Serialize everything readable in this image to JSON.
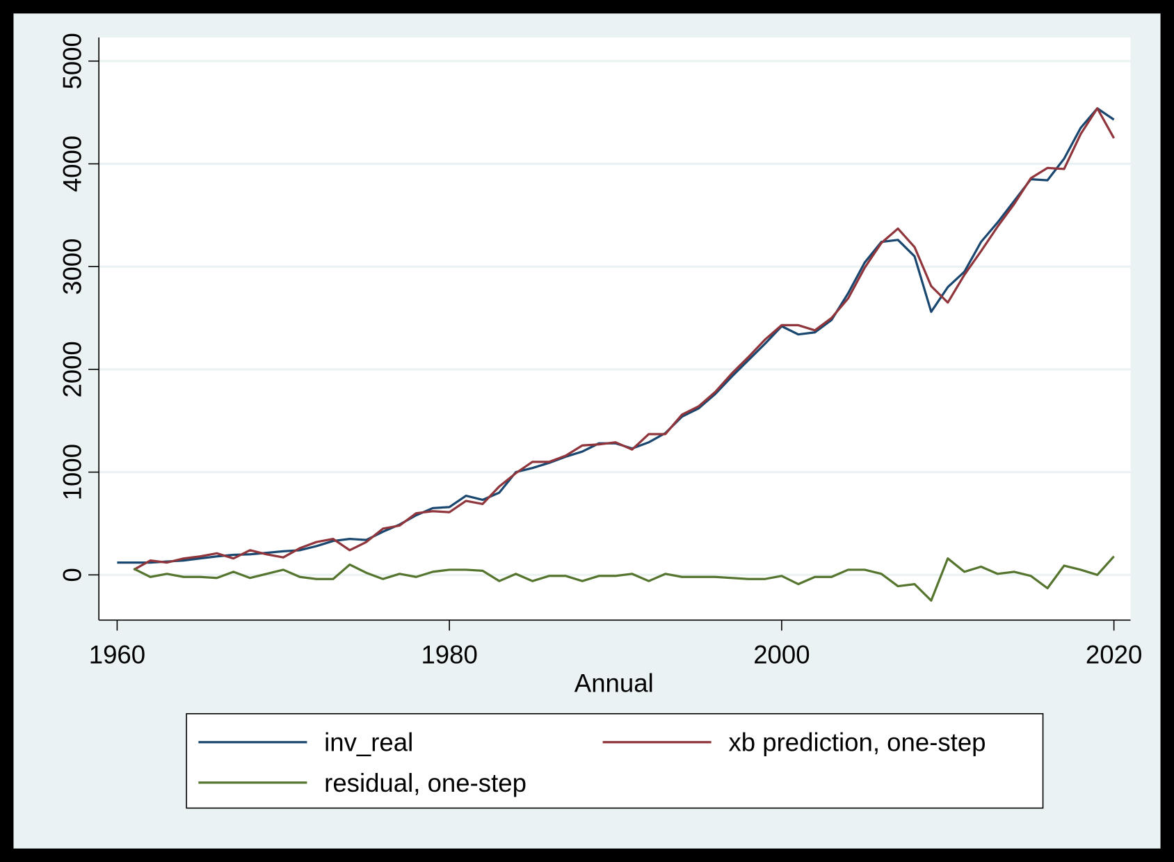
{
  "chart_data": {
    "type": "line",
    "x_label": "Annual",
    "x": [
      1960,
      1961,
      1962,
      1963,
      1964,
      1965,
      1966,
      1967,
      1968,
      1969,
      1970,
      1971,
      1972,
      1973,
      1974,
      1975,
      1976,
      1977,
      1978,
      1979,
      1980,
      1981,
      1982,
      1983,
      1984,
      1985,
      1986,
      1987,
      1988,
      1989,
      1990,
      1991,
      1992,
      1993,
      1994,
      1995,
      1996,
      1997,
      1998,
      1999,
      2000,
      2001,
      2002,
      2003,
      2004,
      2005,
      2006,
      2007,
      2008,
      2009,
      2010,
      2011,
      2012,
      2013,
      2014,
      2015,
      2016,
      2017,
      2018,
      2019,
      2020
    ],
    "series": [
      {
        "name": "inv_real",
        "color": "#1a476f",
        "values": [
          120,
          120,
          120,
          130,
          140,
          160,
          180,
          195,
          200,
          215,
          230,
          240,
          280,
          330,
          350,
          340,
          420,
          490,
          580,
          650,
          660,
          770,
          730,
          800,
          1000,
          1040,
          1090,
          1150,
          1200,
          1280,
          1280,
          1230,
          1290,
          1380,
          1540,
          1620,
          1760,
          1930,
          2090,
          2250,
          2420,
          2340,
          2360,
          2480,
          2740,
          3040,
          3240,
          3260,
          3100,
          2560,
          2800,
          2950,
          3240,
          3430,
          3640,
          3850,
          3840,
          4050,
          4350,
          4540,
          4430
        ]
      },
      {
        "name": "xb prediction, one-step",
        "color": "#90353b",
        "values": [
          null,
          50,
          140,
          120,
          160,
          180,
          210,
          160,
          240,
          200,
          170,
          260,
          320,
          350,
          240,
          320,
          450,
          480,
          600,
          620,
          610,
          720,
          690,
          860,
          990,
          1100,
          1100,
          1160,
          1260,
          1270,
          1290,
          1220,
          1370,
          1370,
          1560,
          1640,
          1780,
          1960,
          2120,
          2290,
          2430,
          2430,
          2380,
          2500,
          2690,
          2990,
          3230,
          3370,
          3190,
          2810,
          2650,
          2920,
          3150,
          3390,
          3610,
          3860,
          3960,
          3950,
          4290,
          4540,
          4250
        ]
      },
      {
        "name": "residual, one-step",
        "color": "#55752f",
        "values": [
          null,
          60,
          -20,
          10,
          -20,
          -20,
          -30,
          30,
          -30,
          10,
          50,
          -20,
          -40,
          -40,
          100,
          20,
          -40,
          10,
          -20,
          30,
          50,
          50,
          40,
          -60,
          10,
          -60,
          -10,
          -10,
          -60,
          -10,
          -10,
          10,
          -60,
          10,
          -20,
          -20,
          -20,
          -30,
          -40,
          -40,
          -10,
          -90,
          -20,
          -20,
          50,
          50,
          10,
          -110,
          -90,
          -250,
          160,
          30,
          80,
          10,
          30,
          -10,
          -130,
          90,
          50,
          0,
          180
        ]
      }
    ],
    "xlim": [
      1958.9,
      2021.0
    ],
    "ylim": [
      -440,
      5230
    ],
    "xticks": [
      1960,
      1980,
      2000,
      2020
    ],
    "yticks": [
      0,
      1000,
      2000,
      3000,
      4000,
      5000
    ],
    "grid": true
  }
}
